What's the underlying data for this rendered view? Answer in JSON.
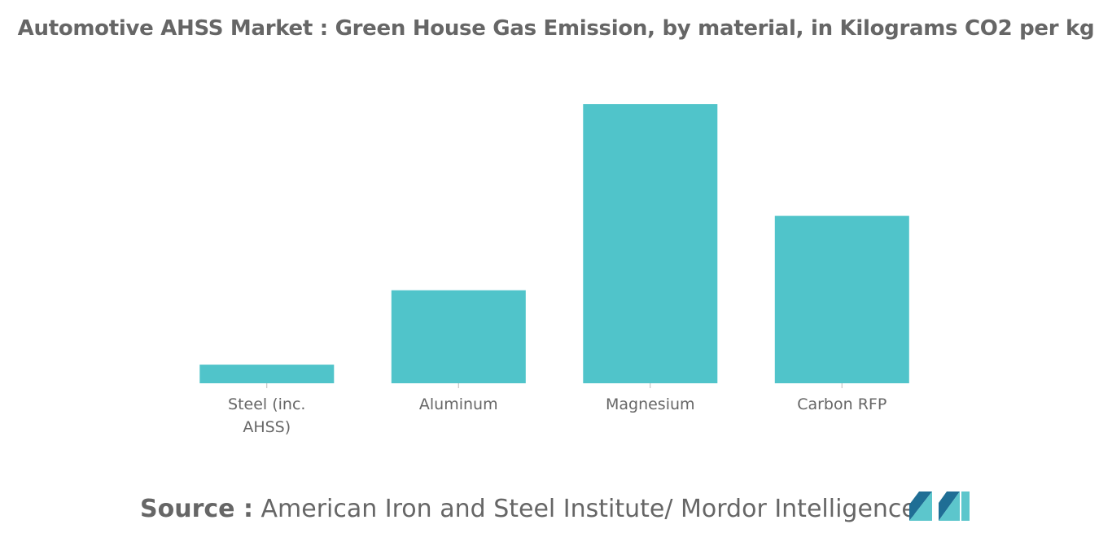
{
  "chart_data": {
    "type": "bar",
    "title": "Automotive AHSS Market : Green House Gas Emission, by material, in Kilograms CO2 per kg",
    "categories": [
      "Steel (inc. AHSS)",
      "Aluminum",
      "Magnesium",
      "Carbon RFP"
    ],
    "category_lines": [
      [
        "Steel (inc.",
        "AHSS)"
      ],
      [
        "Aluminum"
      ],
      [
        "Magnesium"
      ],
      [
        "Carbon RFP"
      ]
    ],
    "values": [
      2.3,
      11.5,
      34.5,
      20.7
    ],
    "ylim": [
      0,
      35
    ],
    "bar_color": "#50C4CA",
    "grid": false,
    "xlabel": "",
    "ylabel": ""
  },
  "source": {
    "label": "Source :",
    "text": " American Iron and Steel Institute/ Mordor Intelligence"
  },
  "colors": {
    "text": "#666666",
    "logo_dark": "#1F6E95",
    "logo_light": "#5CC6CC"
  }
}
